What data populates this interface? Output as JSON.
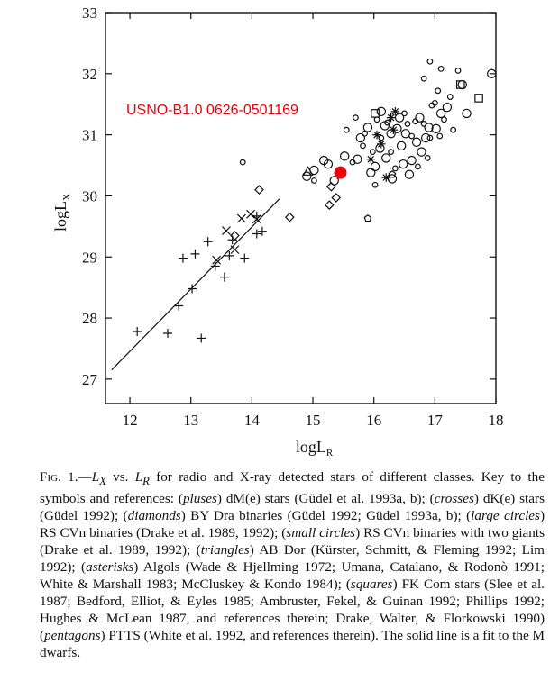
{
  "chart_data": {
    "type": "scatter",
    "xlabel": "logL_R",
    "ylabel": "logL_X",
    "xlim": [
      11.6,
      18
    ],
    "ylim": [
      26.6,
      33
    ],
    "x_ticks": [
      12,
      13,
      14,
      15,
      16,
      17,
      18
    ],
    "y_ticks": [
      27,
      28,
      29,
      30,
      31,
      32,
      33
    ],
    "x_tick_labels": [
      "12",
      "13",
      "14",
      "15",
      "16",
      "17",
      "18"
    ],
    "y_tick_labels": [
      "27",
      "28",
      "29",
      "30",
      "31",
      "32",
      "33"
    ],
    "grid": false,
    "annotation": {
      "text": "USNO-B1.0 0626-0501169",
      "color": "#e8000b",
      "point": [
        15.45,
        30.38
      ]
    },
    "fit_line": {
      "name": "fit to the M dwarfs",
      "x": [
        11.7,
        14.45
      ],
      "y": [
        27.15,
        29.95
      ]
    },
    "series": [
      {
        "symbol": "plus",
        "points": [
          [
            12.12,
            27.78
          ],
          [
            12.62,
            27.75
          ],
          [
            12.8,
            28.2
          ],
          [
            12.87,
            28.98
          ],
          [
            13.02,
            28.48
          ],
          [
            13.07,
            29.05
          ],
          [
            13.17,
            27.67
          ],
          [
            13.28,
            29.25
          ],
          [
            13.4,
            28.85
          ],
          [
            13.55,
            28.67
          ],
          [
            13.63,
            29.02
          ],
          [
            13.68,
            29.28
          ],
          [
            13.88,
            28.98
          ],
          [
            14.08,
            29.38
          ],
          [
            14.17,
            29.42
          ],
          [
            14.08,
            29.67
          ]
        ]
      },
      {
        "symbol": "cross",
        "points": [
          [
            13.42,
            28.95
          ],
          [
            13.58,
            29.43
          ],
          [
            13.72,
            29.12
          ],
          [
            13.83,
            29.63
          ],
          [
            13.98,
            29.7
          ],
          [
            14.08,
            29.62
          ]
        ]
      },
      {
        "symbol": "diamond",
        "points": [
          [
            13.72,
            29.35
          ],
          [
            14.12,
            30.1
          ],
          [
            14.62,
            29.65
          ],
          [
            15.27,
            29.85
          ],
          [
            15.3,
            30.15
          ],
          [
            15.38,
            29.97
          ]
        ]
      },
      {
        "symbol": "large-circle",
        "points": [
          [
            14.9,
            30.32
          ],
          [
            15.02,
            30.42
          ],
          [
            15.18,
            30.58
          ],
          [
            15.25,
            30.52
          ],
          [
            15.35,
            30.25
          ],
          [
            15.52,
            30.65
          ],
          [
            15.73,
            30.6
          ],
          [
            15.78,
            30.95
          ],
          [
            15.9,
            31.12
          ],
          [
            15.95,
            30.38
          ],
          [
            16.02,
            30.48
          ],
          [
            16.1,
            30.78
          ],
          [
            16.12,
            31.38
          ],
          [
            16.18,
            31.15
          ],
          [
            16.2,
            30.62
          ],
          [
            16.28,
            31.02
          ],
          [
            16.3,
            30.28
          ],
          [
            16.38,
            31.1
          ],
          [
            16.42,
            31.28
          ],
          [
            16.45,
            30.82
          ],
          [
            16.52,
            31.02
          ],
          [
            16.58,
            30.35
          ],
          [
            16.62,
            30.58
          ],
          [
            16.7,
            30.88
          ],
          [
            16.75,
            31.28
          ],
          [
            16.78,
            30.72
          ],
          [
            16.85,
            30.95
          ],
          [
            16.9,
            31.12
          ],
          [
            17.02,
            31.1
          ],
          [
            17.1,
            31.35
          ],
          [
            17.2,
            31.45
          ],
          [
            17.45,
            31.82
          ],
          [
            17.52,
            31.35
          ],
          [
            17.93,
            32.0
          ],
          [
            16.48,
            30.52
          ]
        ]
      },
      {
        "symbol": "small-circle",
        "points": [
          [
            13.85,
            30.55
          ],
          [
            15.02,
            30.25
          ],
          [
            15.7,
            31.28
          ],
          [
            15.82,
            30.82
          ],
          [
            15.85,
            31.02
          ],
          [
            15.98,
            30.72
          ],
          [
            16.05,
            31.25
          ],
          [
            16.12,
            30.95
          ],
          [
            16.22,
            31.2
          ],
          [
            16.28,
            30.72
          ],
          [
            16.35,
            30.45
          ],
          [
            16.5,
            31.35
          ],
          [
            16.55,
            31.18
          ],
          [
            16.62,
            30.98
          ],
          [
            16.68,
            31.22
          ],
          [
            16.72,
            30.48
          ],
          [
            16.82,
            31.18
          ],
          [
            16.88,
            30.62
          ],
          [
            16.92,
            30.95
          ],
          [
            16.95,
            31.48
          ],
          [
            17.0,
            31.52
          ],
          [
            17.05,
            31.72
          ],
          [
            17.08,
            30.98
          ],
          [
            17.15,
            31.25
          ],
          [
            17.25,
            31.62
          ],
          [
            17.3,
            31.08
          ],
          [
            17.38,
            32.05
          ],
          [
            16.82,
            31.92
          ],
          [
            16.92,
            32.2
          ],
          [
            17.1,
            32.08
          ],
          [
            15.55,
            31.08
          ],
          [
            15.65,
            30.55
          ],
          [
            16.02,
            30.18
          ]
        ]
      },
      {
        "symbol": "triangle",
        "points": [
          [
            14.92,
            30.4
          ]
        ]
      },
      {
        "symbol": "asterisk",
        "points": [
          [
            15.95,
            30.6
          ],
          [
            16.05,
            31.0
          ],
          [
            16.12,
            30.85
          ],
          [
            16.2,
            30.3
          ],
          [
            16.28,
            31.28
          ],
          [
            16.35,
            31.38
          ],
          [
            16.32,
            31.08
          ]
        ]
      },
      {
        "symbol": "square",
        "points": [
          [
            16.02,
            31.35
          ],
          [
            17.42,
            31.82
          ],
          [
            17.72,
            31.6
          ]
        ]
      },
      {
        "symbol": "pentagon",
        "points": [
          [
            15.9,
            29.63
          ],
          [
            16.3,
            30.35
          ]
        ]
      }
    ]
  },
  "caption": {
    "label": "Fig. 1.",
    "title_x": "L",
    "title_x_sub": "X",
    "title_vs": " vs. ",
    "title_r": "L",
    "title_r_sub": "R",
    "text_1": " for radio and X-ray detected stars of different classes. Key to the symbols and references: (",
    "sym_pluses": "pluses",
    "text_2": ") dM(e) stars (Güdel et al. 1993a, b); (",
    "sym_crosses": "crosses",
    "text_3": ") dK(e) stars (Güdel 1992); (",
    "sym_diamonds": "diamonds",
    "text_4": ") BY Dra binaries (Güdel 1992; Güdel 1993a, b); (",
    "sym_large_circles": "large circles",
    "text_5": ") RS CVn binaries (Drake et al. 1989, 1992); (",
    "sym_small_circles": "small circles",
    "text_6": ") RS CVn binaries with two giants (Drake et al. 1989, 1992); (",
    "sym_triangles": "triangles",
    "text_7": ") AB Dor (Kürster, Schmitt, & Fleming 1992; Lim 1992); (",
    "sym_asterisks": "asterisks",
    "text_8": ") Algols (Wade & Hjellming 1972; Umana, Catalano, & Rodonò 1991; White & Marshall 1983; McCluskey & Kondo 1984); (",
    "sym_squares": "squares",
    "text_9": ") FK Com stars (Slee et al. 1987; Bedford, Elliot, & Eyles 1985; Ambruster, Fekel, & Guinan 1992; Phillips 1992; Hughes & McLean 1987, and references therein; Drake, Walter, & Florkowski 1990) (",
    "sym_pentagons": "pentagons",
    "text_10": ") PTTS (White et al. 1992, and references therein). The solid line is a fit to the M dwarfs."
  }
}
